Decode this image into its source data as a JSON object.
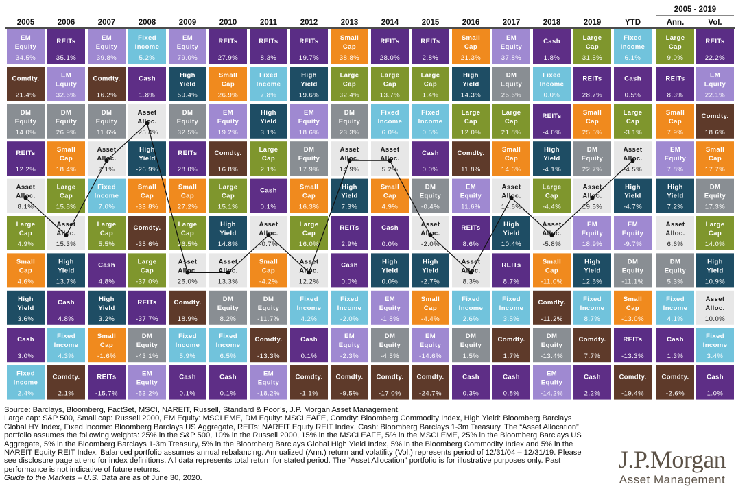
{
  "colors": {
    "EM Equity": "#9f89d1",
    "REITs": "#5a2d85",
    "Comdty.": "#5e3a2a",
    "Fixed Income": "#71c3dc",
    "Small Cap": "#f08a1e",
    "Large Cap": "#7f962d",
    "DM Equity": "#898e93",
    "High Yield": "#1e4d64",
    "Cash": "#5e2e86",
    "Asset Alloc.": "#e7e7e7"
  },
  "chart_data": {
    "type": "table",
    "title": "",
    "columns": [
      "2005",
      "2006",
      "2007",
      "2008",
      "2009",
      "2010",
      "2011",
      "2012",
      "2013",
      "2014",
      "2015",
      "2016",
      "2017",
      "2018",
      "2019",
      "YTD",
      "Ann.",
      "Vol."
    ],
    "period_header": "2005 - 2019",
    "highlighted_series": "Asset Alloc.",
    "cells": [
      [
        [
          "EM Equity",
          "34.5%"
        ],
        [
          "Comdty.",
          "21.4%"
        ],
        [
          "DM Equity",
          "14.0%"
        ],
        [
          "REITs",
          "12.2%"
        ],
        [
          "Asset Alloc.",
          "8.1%"
        ],
        [
          "Large Cap",
          "4.9%"
        ],
        [
          "Small Cap",
          "4.6%"
        ],
        [
          "High Yield",
          "3.6%"
        ],
        [
          "Cash",
          "3.0%"
        ],
        [
          "Fixed Income",
          "2.4%"
        ]
      ],
      [
        [
          "REITs",
          "35.1%"
        ],
        [
          "EM Equity",
          "32.6%"
        ],
        [
          "DM Equity",
          "26.9%"
        ],
        [
          "Small Cap",
          "18.4%"
        ],
        [
          "Large Cap",
          "15.8%"
        ],
        [
          "Asset Alloc.",
          "15.3%"
        ],
        [
          "High Yield",
          "13.7%"
        ],
        [
          "Cash",
          "4.8%"
        ],
        [
          "Fixed Income",
          "4.3%"
        ],
        [
          "Comdty.",
          "2.1%"
        ]
      ],
      [
        [
          "EM Equity",
          "39.8%"
        ],
        [
          "Comdty.",
          "16.2%"
        ],
        [
          "DM Equity",
          "11.6%"
        ],
        [
          "Asset Alloc.",
          "7.1%"
        ],
        [
          "Fixed Income",
          "7.0%"
        ],
        [
          "Large Cap",
          "5.5%"
        ],
        [
          "Cash",
          "4.8%"
        ],
        [
          "High Yield",
          "3.2%"
        ],
        [
          "Small Cap",
          "-1.6%"
        ],
        [
          "REITs",
          "-15.7%"
        ]
      ],
      [
        [
          "Fixed Income",
          "5.2%"
        ],
        [
          "Cash",
          "1.8%"
        ],
        [
          "Asset Alloc.",
          "-25.4%"
        ],
        [
          "High Yield",
          "-26.9%"
        ],
        [
          "Small Cap",
          "-33.8%"
        ],
        [
          "Comdty.",
          "-35.6%"
        ],
        [
          "Large Cap",
          "-37.0%"
        ],
        [
          "REITs",
          "-37.7%"
        ],
        [
          "DM Equity",
          "-43.1%"
        ],
        [
          "EM Equity",
          "-53.2%"
        ]
      ],
      [
        [
          "EM Equity",
          "79.0%"
        ],
        [
          "High Yield",
          "59.4%"
        ],
        [
          "DM Equity",
          "32.5%"
        ],
        [
          "REITs",
          "28.0%"
        ],
        [
          "Small Cap",
          "27.2%"
        ],
        [
          "Large Cap",
          "26.5%"
        ],
        [
          "Asset Alloc.",
          "25.0%"
        ],
        [
          "Comdty.",
          "18.9%"
        ],
        [
          "Fixed Income",
          "5.9%"
        ],
        [
          "Cash",
          "0.1%"
        ]
      ],
      [
        [
          "REITs",
          "27.9%"
        ],
        [
          "Small Cap",
          "26.9%"
        ],
        [
          "EM Equity",
          "19.2%"
        ],
        [
          "Comdty.",
          "16.8%"
        ],
        [
          "Large Cap",
          "15.1%"
        ],
        [
          "High Yield",
          "14.8%"
        ],
        [
          "Asset Alloc.",
          "13.3%"
        ],
        [
          "DM Equity",
          "8.2%"
        ],
        [
          "Fixed Income",
          "6.5%"
        ],
        [
          "Cash",
          "0.1%"
        ]
      ],
      [
        [
          "REITs",
          "8.3%"
        ],
        [
          "Fixed Income",
          "7.8%"
        ],
        [
          "High Yield",
          "3.1%"
        ],
        [
          "Large Cap",
          "2.1%"
        ],
        [
          "Cash",
          "0.1%"
        ],
        [
          "Asset Alloc.",
          "-0.7%"
        ],
        [
          "Small Cap",
          "-4.2%"
        ],
        [
          "DM Equity",
          "-11.7%"
        ],
        [
          "Comdty.",
          "-13.3%"
        ],
        [
          "EM Equity",
          "-18.2%"
        ]
      ],
      [
        [
          "REITs",
          "19.7%"
        ],
        [
          "High Yield",
          "19.6%"
        ],
        [
          "EM Equity",
          "18.6%"
        ],
        [
          "DM Equity",
          "17.9%"
        ],
        [
          "Small Cap",
          "16.3%"
        ],
        [
          "Large Cap",
          "16.0%"
        ],
        [
          "Asset Alloc.",
          "12.2%"
        ],
        [
          "Fixed Income",
          "4.2%"
        ],
        [
          "Cash",
          "0.1%"
        ],
        [
          "Comdty.",
          "-1.1%"
        ]
      ],
      [
        [
          "Small Cap",
          "38.8%"
        ],
        [
          "Large Cap",
          "32.4%"
        ],
        [
          "DM Equity",
          "23.3%"
        ],
        [
          "Asset Alloc.",
          "14.9%"
        ],
        [
          "High Yield",
          "7.3%"
        ],
        [
          "REITs",
          "2.9%"
        ],
        [
          "Cash",
          "0.0%"
        ],
        [
          "Fixed Income",
          "-2.0%"
        ],
        [
          "EM Equity",
          "-2.3%"
        ],
        [
          "Comdty.",
          "-9.5%"
        ]
      ],
      [
        [
          "REITs",
          "28.0%"
        ],
        [
          "Large Cap",
          "13.7%"
        ],
        [
          "Fixed Income",
          "6.0%"
        ],
        [
          "Asset Alloc.",
          "5.2%"
        ],
        [
          "Small Cap",
          "4.9%"
        ],
        [
          "Cash",
          "0.0%"
        ],
        [
          "High Yield",
          "0.0%"
        ],
        [
          "EM Equity",
          "-1.8%"
        ],
        [
          "DM Equity",
          "-4.5%"
        ],
        [
          "Comdty.",
          "-17.0%"
        ]
      ],
      [
        [
          "REITs",
          "2.8%"
        ],
        [
          "Large Cap",
          "1.4%"
        ],
        [
          "Fixed Income",
          "0.5%"
        ],
        [
          "Cash",
          "0.0%"
        ],
        [
          "DM Equity",
          "-0.4%"
        ],
        [
          "Asset Alloc.",
          "-2.0%"
        ],
        [
          "High Yield",
          "-2.7%"
        ],
        [
          "Small Cap",
          "-4.4%"
        ],
        [
          "EM Equity",
          "-14.6%"
        ],
        [
          "Comdty.",
          "-24.7%"
        ]
      ],
      [
        [
          "Small Cap",
          "21.3%"
        ],
        [
          "High Yield",
          "14.3%"
        ],
        [
          "Large Cap",
          "12.0%"
        ],
        [
          "Comdty.",
          "11.8%"
        ],
        [
          "EM Equity",
          "11.6%"
        ],
        [
          "REITs",
          "8.6%"
        ],
        [
          "Asset Alloc.",
          "8.3%"
        ],
        [
          "Fixed Income",
          "2.6%"
        ],
        [
          "DM Equity",
          "1.5%"
        ],
        [
          "Cash",
          "0.3%"
        ]
      ],
      [
        [
          "EM Equity",
          "37.8%"
        ],
        [
          "DM Equity",
          "25.6%"
        ],
        [
          "Large Cap",
          "21.8%"
        ],
        [
          "Small Cap",
          "14.6%"
        ],
        [
          "Asset Alloc.",
          "14.6%"
        ],
        [
          "High Yield",
          "10.4%"
        ],
        [
          "REITs",
          "8.7%"
        ],
        [
          "Fixed Income",
          "3.5%"
        ],
        [
          "Comdty.",
          "1.7%"
        ],
        [
          "Cash",
          "0.8%"
        ]
      ],
      [
        [
          "Cash",
          "1.8%"
        ],
        [
          "Fixed Income",
          "0.0%"
        ],
        [
          "REITs",
          "-4.0%"
        ],
        [
          "High Yield",
          "-4.1%"
        ],
        [
          "Large Cap",
          "-4.4%"
        ],
        [
          "Asset Alloc.",
          "-5.8%"
        ],
        [
          "Small Cap",
          "-11.0%"
        ],
        [
          "Comdty.",
          "-11.2%"
        ],
        [
          "DM Equity",
          "-13.4%"
        ],
        [
          "EM Equity",
          "-14.2%"
        ]
      ],
      [
        [
          "Large Cap",
          "31.5%"
        ],
        [
          "REITs",
          "28.7%"
        ],
        [
          "Small Cap",
          "25.5%"
        ],
        [
          "DM Equity",
          "22.7%"
        ],
        [
          "Asset Alloc.",
          "19.5%"
        ],
        [
          "EM Equity",
          "18.9%"
        ],
        [
          "High Yield",
          "12.6%"
        ],
        [
          "Fixed Income",
          "8.7%"
        ],
        [
          "Comdty.",
          "7.7%"
        ],
        [
          "Cash",
          "2.2%"
        ]
      ],
      [
        [
          "Fixed Income",
          "6.1%"
        ],
        [
          "Cash",
          "0.5%"
        ],
        [
          "Large Cap",
          "-3.1%"
        ],
        [
          "Asset Alloc.",
          "-4.5%"
        ],
        [
          "High Yield",
          "-4.7%"
        ],
        [
          "EM Equity",
          "-9.7%"
        ],
        [
          "DM Equity",
          "-11.1%"
        ],
        [
          "Small Cap",
          "-13.0%"
        ],
        [
          "REITs",
          "-13.3%"
        ],
        [
          "Comdty.",
          "-19.4%"
        ]
      ],
      [
        [
          "Large Cap",
          "9.0%"
        ],
        [
          "REITs",
          "8.3%"
        ],
        [
          "Small Cap",
          "7.9%"
        ],
        [
          "EM Equity",
          "7.8%"
        ],
        [
          "High Yield",
          "7.2%"
        ],
        [
          "Asset Alloc.",
          "6.6%"
        ],
        [
          "DM Equity",
          "5.3%"
        ],
        [
          "Fixed Income",
          "4.1%"
        ],
        [
          "Cash",
          "1.3%"
        ],
        [
          "Comdty.",
          "-2.6%"
        ]
      ],
      [
        [
          "REITs",
          "22.2%"
        ],
        [
          "EM Equity",
          "22.1%"
        ],
        [
          "Comdty.",
          "18.6%"
        ],
        [
          "Small Cap",
          "17.7%"
        ],
        [
          "DM Equity",
          "17.3%"
        ],
        [
          "Large Cap",
          "14.0%"
        ],
        [
          "High Yield",
          "10.9%"
        ],
        [
          "Asset Alloc.",
          "10.0%"
        ],
        [
          "Fixed Income",
          "3.4%"
        ],
        [
          "Cash",
          "1.0%"
        ]
      ]
    ]
  },
  "footer": {
    "source_text": "Source: Barclays, Bloomberg, FactSet, MSCI, NAREIT, Russell, Standard & Poor’s, J.P. Morgan Asset Management.",
    "notes_text": "Large cap: S&P 500, Small cap: Russell 2000, EM Equity: MSCI EME, DM Equity: MSCI EAFE, Comdty: Bloomberg Commodity Index, High Yield: Bloomberg Barclays Global HY Index, Fixed Income: Bloomberg Barclays US Aggregate, REITs: NAREIT Equity REIT Index, Cash: Bloomberg Barclays 1-3m Treasury. The “Asset Allocation” portfolio assumes the following weights: 25% in the S&P 500, 10% in the Russell 2000, 15% in the MSCI EAFE, 5% in the MSCI EME, 25% in the Bloomberg Barclays US Aggregate, 5% in the Bloomberg Barclays 1-3m Treasury, 5% in the Bloomberg Barclays Global High Yield Index, 5% in the Bloomberg Commodity Index and 5% in the NAREIT Equity REIT Index. Balanced portfolio assumes annual rebalancing. Annualized (Ann.) return and volatility (Vol.) represents period of 12/31/04 – 12/31/19. Please see disclosure page at end for index definitions. All data represents total return for stated period. The “Asset Allocation” portfolio is for illustrative purposes only. Past performance is not indicative of future returns.",
    "guide_text": "Guide to the Markets – U.S.",
    "asof_text": " Data are as of June 30, 2020."
  },
  "logo": {
    "brand": "J.P.Morgan",
    "subtitle": "Asset Management"
  }
}
